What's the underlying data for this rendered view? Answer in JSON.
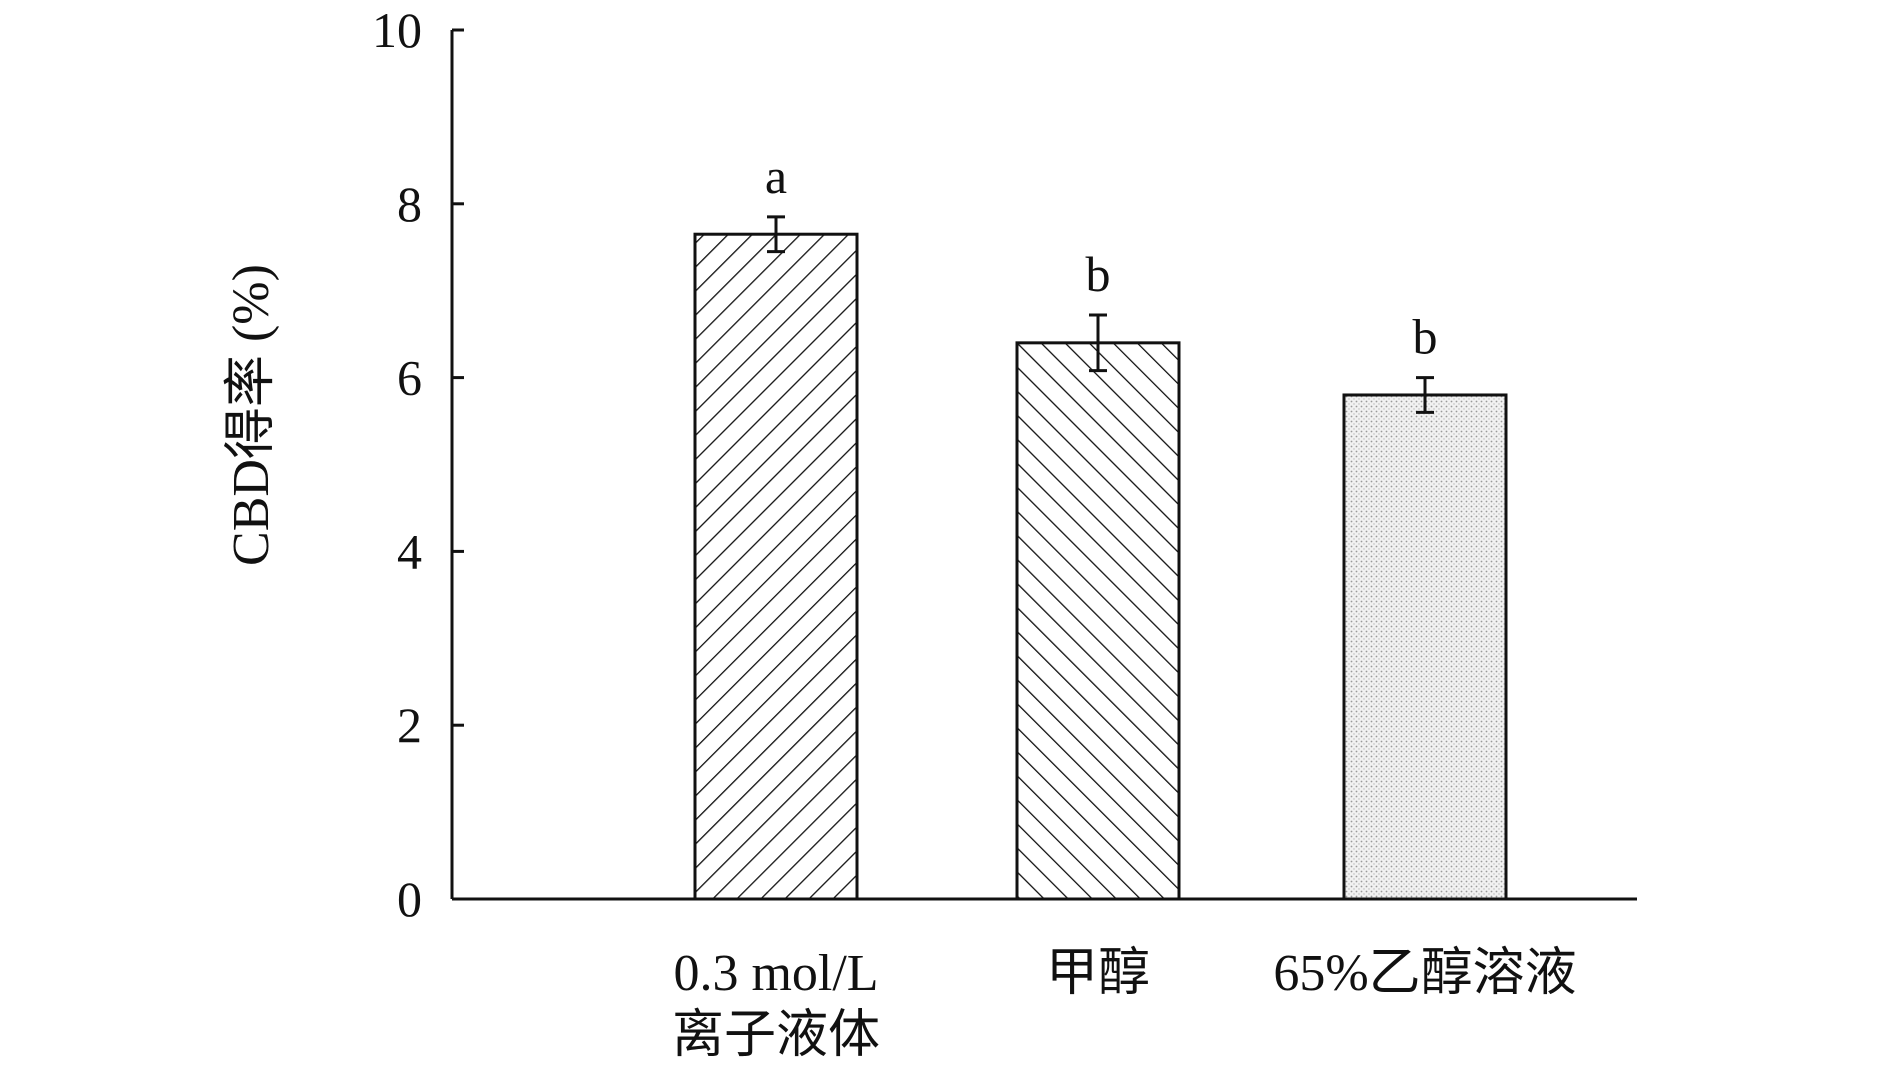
{
  "chart_data": {
    "type": "bar",
    "ylabel": "CBD得率 (%)",
    "ylim": [
      0,
      10
    ],
    "yticks": [
      0,
      2,
      4,
      6,
      8,
      10
    ],
    "categories": [
      [
        "0.3 mol/L",
        "离子液体"
      ],
      [
        "甲醇"
      ],
      [
        "65%乙醇溶液"
      ]
    ],
    "values": [
      7.65,
      6.4,
      5.8
    ],
    "errors": [
      0.2,
      0.32,
      0.2
    ],
    "significance": [
      "a",
      "b",
      "b"
    ],
    "patterns": [
      "hatch-forward",
      "hatch-backward",
      "dots"
    ],
    "grid": false,
    "legend": null
  }
}
